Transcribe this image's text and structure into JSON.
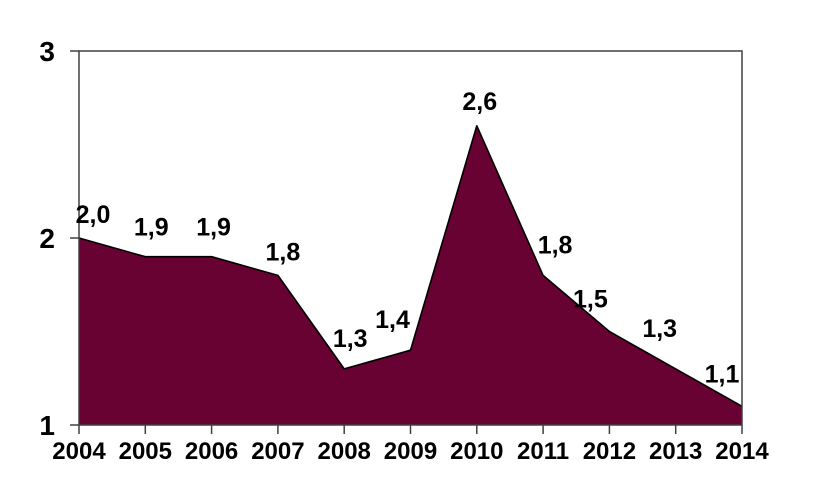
{
  "chart_data": {
    "type": "area",
    "title": "",
    "xlabel": "",
    "ylabel": "",
    "categories": [
      "2004",
      "2005",
      "2006",
      "2007",
      "2008",
      "2009",
      "2010",
      "2011",
      "2012",
      "2013",
      "2014"
    ],
    "values": [
      2.0,
      1.9,
      1.9,
      1.8,
      1.3,
      1.4,
      2.6,
      1.8,
      1.5,
      1.3,
      1.1
    ],
    "point_labels": [
      "2,0",
      "1,9",
      "1,9",
      "1,8",
      "1,3",
      "1,4",
      "2,6",
      "1,8",
      "1,5",
      "1,3",
      "1,1"
    ],
    "ylim": [
      1,
      3
    ],
    "yticks": [
      1,
      2,
      3
    ],
    "ytick_labels": [
      "1",
      "2",
      "3"
    ],
    "grid": false,
    "legend": "none",
    "area_color": "#670233",
    "line_color": "#000000",
    "axis_color": "#404040",
    "background_color": "#ffffff",
    "label_offsets_x": [
      14,
      6,
      2,
      5,
      6,
      -18,
      3,
      12,
      -19,
      -16,
      -20
    ],
    "label_offsets_y": [
      -15,
      -21,
      -21,
      -15,
      -22,
      -22,
      -16,
      -22,
      -24,
      -32,
      -24
    ]
  }
}
